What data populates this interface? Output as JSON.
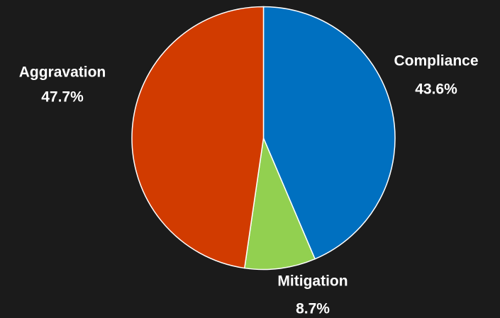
{
  "chart_data": {
    "type": "pie",
    "categories": [
      "Compliance",
      "Mitigation",
      "Aggravation"
    ],
    "values": [
      43.6,
      8.7,
      47.7
    ],
    "value_labels": [
      "43.6%",
      "8.7%",
      "47.7%"
    ],
    "colors": [
      "#0070c0",
      "#92d050",
      "#d13b00"
    ]
  }
}
